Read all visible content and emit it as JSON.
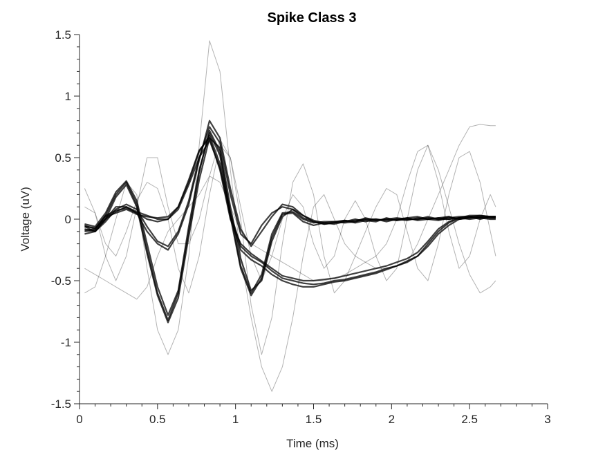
{
  "chart_data": {
    "type": "line",
    "title": "Spike Class 3",
    "xlabel": "Time (ms)",
    "ylabel": "Voltage (uV)",
    "xlim": [
      0,
      3
    ],
    "ylim": [
      -1.5,
      1.5
    ],
    "x_ticks": [
      0,
      0.5,
      1,
      1.5,
      2,
      2.5,
      3
    ],
    "x_tick_labels": [
      "0",
      "0.5",
      "1",
      "1.5",
      "2",
      "2.5",
      "3"
    ],
    "y_ticks": [
      -1.5,
      -1,
      -0.5,
      0,
      0.5,
      1,
      1.5
    ],
    "y_tick_labels": [
      "-1.5",
      "-1",
      "-0.5",
      "0",
      "0.5",
      "1",
      "1.5"
    ],
    "grid": false,
    "legend": "none",
    "line_color": "#000000",
    "x": [
      0.033,
      0.1,
      0.167,
      0.233,
      0.3,
      0.367,
      0.433,
      0.5,
      0.567,
      0.633,
      0.7,
      0.767,
      0.833,
      0.9,
      0.967,
      1.033,
      1.1,
      1.167,
      1.233,
      1.3,
      1.367,
      1.433,
      1.5,
      1.567,
      1.633,
      1.7,
      1.767,
      1.833,
      1.9,
      1.967,
      2.033,
      2.1,
      2.167,
      2.233,
      2.3,
      2.367,
      2.433,
      2.5,
      2.567,
      2.633,
      2.667
    ],
    "series": [
      {
        "values": [
          -0.05,
          -0.08,
          0.03,
          0.2,
          0.3,
          0.12,
          -0.25,
          -0.6,
          -0.82,
          -0.6,
          -0.1,
          0.38,
          0.72,
          0.55,
          0.05,
          -0.38,
          -0.6,
          -0.45,
          -0.12,
          0.05,
          0.06,
          0.0,
          -0.03,
          -0.02,
          -0.02,
          -0.03,
          -0.02,
          0.0,
          -0.01,
          0.0,
          -0.01,
          0.0,
          0.0,
          0.01,
          0.0,
          0.0,
          0.01,
          0.0,
          0.01,
          0.0,
          0.0
        ]
      },
      {
        "values": [
          -0.06,
          -0.1,
          0.0,
          0.18,
          0.28,
          0.1,
          -0.28,
          -0.62,
          -0.84,
          -0.64,
          -0.14,
          0.32,
          0.66,
          0.58,
          0.1,
          -0.32,
          -0.58,
          -0.5,
          -0.18,
          0.02,
          0.08,
          0.03,
          -0.02,
          -0.04,
          -0.03,
          -0.01,
          -0.03,
          -0.01,
          -0.02,
          0.01,
          -0.01,
          0.01,
          -0.01,
          0.0,
          0.01,
          0.02,
          0.0,
          0.01,
          0.02,
          0.01,
          0.01
        ]
      },
      {
        "values": [
          -0.04,
          -0.06,
          0.05,
          0.22,
          0.31,
          0.15,
          -0.2,
          -0.55,
          -0.78,
          -0.58,
          -0.06,
          0.4,
          0.7,
          0.52,
          0.02,
          -0.4,
          -0.62,
          -0.48,
          -0.15,
          0.04,
          0.05,
          -0.02,
          -0.05,
          -0.03,
          -0.04,
          -0.02,
          0.0,
          -0.02,
          0.0,
          -0.02,
          0.0,
          -0.01,
          0.01,
          0.0,
          -0.01,
          0.01,
          0.02,
          0.02,
          0.0,
          0.02,
          0.02
        ]
      },
      {
        "values": [
          -0.08,
          -0.1,
          -0.02,
          0.08,
          0.12,
          0.08,
          -0.06,
          -0.18,
          -0.22,
          -0.1,
          0.15,
          0.5,
          0.75,
          0.62,
          0.2,
          -0.12,
          -0.2,
          -0.05,
          0.05,
          0.1,
          0.08,
          0.01,
          -0.02,
          -0.04,
          -0.03,
          -0.02,
          -0.01,
          0.0,
          0.0,
          -0.01,
          0.0,
          0.01,
          0.02,
          0.0,
          0.01,
          0.0,
          0.01,
          0.02,
          0.01,
          0.02,
          0.01
        ]
      },
      {
        "values": [
          -0.06,
          -0.07,
          0.0,
          0.1,
          0.1,
          0.05,
          -0.1,
          -0.2,
          -0.25,
          -0.12,
          0.12,
          0.48,
          0.8,
          0.66,
          0.25,
          -0.08,
          -0.22,
          -0.1,
          0.02,
          0.12,
          0.1,
          0.03,
          -0.01,
          -0.03,
          -0.02,
          -0.01,
          -0.02,
          0.01,
          -0.01,
          0.0,
          0.01,
          0.0,
          0.0,
          0.02,
          0.0,
          0.02,
          0.0,
          0.01,
          0.02,
          0.02,
          0.02
        ]
      },
      {
        "values": [
          -0.1,
          -0.09,
          0.02,
          0.05,
          0.08,
          0.04,
          0.02,
          0.01,
          0.02,
          0.1,
          0.3,
          0.55,
          0.68,
          0.45,
          0.05,
          -0.22,
          -0.3,
          -0.35,
          -0.42,
          -0.48,
          -0.5,
          -0.52,
          -0.53,
          -0.52,
          -0.5,
          -0.49,
          -0.47,
          -0.45,
          -0.43,
          -0.4,
          -0.38,
          -0.34,
          -0.3,
          -0.22,
          -0.12,
          -0.05,
          0.0,
          0.02,
          0.03,
          0.02,
          0.02
        ]
      },
      {
        "values": [
          -0.12,
          -0.1,
          0.0,
          0.06,
          0.1,
          0.06,
          0.03,
          0.0,
          0.0,
          0.08,
          0.28,
          0.5,
          0.64,
          0.42,
          0.02,
          -0.25,
          -0.33,
          -0.38,
          -0.45,
          -0.5,
          -0.53,
          -0.55,
          -0.55,
          -0.53,
          -0.51,
          -0.5,
          -0.48,
          -0.46,
          -0.44,
          -0.41,
          -0.38,
          -0.35,
          -0.3,
          -0.2,
          -0.1,
          -0.03,
          0.01,
          0.03,
          0.03,
          0.02,
          0.02
        ]
      },
      {
        "values": [
          -0.09,
          -0.08,
          0.03,
          0.07,
          0.09,
          0.05,
          0.0,
          -0.02,
          0.0,
          0.1,
          0.32,
          0.56,
          0.66,
          0.4,
          0.0,
          -0.2,
          -0.28,
          -0.34,
          -0.4,
          -0.46,
          -0.48,
          -0.5,
          -0.5,
          -0.49,
          -0.48,
          -0.46,
          -0.44,
          -0.42,
          -0.4,
          -0.38,
          -0.35,
          -0.32,
          -0.27,
          -0.18,
          -0.08,
          -0.02,
          0.01,
          0.02,
          0.01,
          0.01,
          0.01
        ]
      },
      {
        "values": [
          0.25,
          0.05,
          -0.3,
          -0.5,
          -0.3,
          0.1,
          0.5,
          0.5,
          0.1,
          -0.2,
          -0.2,
          0.0,
          0.35,
          0.65,
          0.5,
          0.0,
          -0.7,
          -1.1,
          -0.8,
          -0.2,
          0.3,
          0.45,
          0.2,
          -0.3,
          -0.6,
          -0.5,
          -0.3,
          -0.1,
          0.1,
          0.25,
          0.2,
          -0.1,
          -0.4,
          -0.5,
          -0.2,
          0.2,
          0.5,
          0.55,
          0.3,
          -0.1,
          -0.3
        ]
      },
      {
        "values": [
          -0.6,
          -0.55,
          -0.3,
          0.0,
          0.3,
          0.2,
          -0.4,
          -0.9,
          -1.1,
          -0.9,
          -0.3,
          0.6,
          1.45,
          1.2,
          0.4,
          -0.3,
          -0.8,
          -1.2,
          -1.4,
          -1.2,
          -0.8,
          -0.3,
          0.1,
          0.2,
          0.0,
          -0.2,
          -0.3,
          -0.35,
          -0.4,
          -0.4,
          -0.38,
          -0.35,
          -0.2,
          0.0,
          0.2,
          0.4,
          0.6,
          0.75,
          0.77,
          0.76,
          0.76
        ]
      },
      {
        "values": [
          -0.4,
          -0.45,
          -0.5,
          -0.55,
          -0.6,
          -0.65,
          -0.55,
          -0.3,
          -0.1,
          0.0,
          0.1,
          0.2,
          0.35,
          0.3,
          0.1,
          -0.1,
          -0.2,
          -0.25,
          -0.3,
          -0.35,
          -0.4,
          -0.45,
          -0.5,
          -0.5,
          -0.48,
          -0.45,
          -0.4,
          -0.35,
          -0.3,
          -0.2,
          0.0,
          0.3,
          0.55,
          0.6,
          0.4,
          0.1,
          -0.2,
          -0.45,
          -0.6,
          -0.55,
          -0.5
        ]
      },
      {
        "values": [
          0.1,
          0.05,
          -0.2,
          -0.3,
          -0.1,
          0.15,
          0.3,
          0.25,
          0.0,
          -0.4,
          -0.6,
          -0.3,
          0.2,
          0.6,
          0.5,
          0.1,
          -0.3,
          -0.5,
          -0.3,
          0.0,
          0.2,
          0.1,
          -0.2,
          -0.4,
          -0.3,
          0.0,
          0.15,
          0.0,
          -0.3,
          -0.5,
          -0.4,
          0.0,
          0.4,
          0.6,
          0.3,
          -0.1,
          -0.4,
          -0.3,
          0.0,
          0.2,
          0.1
        ]
      }
    ]
  }
}
